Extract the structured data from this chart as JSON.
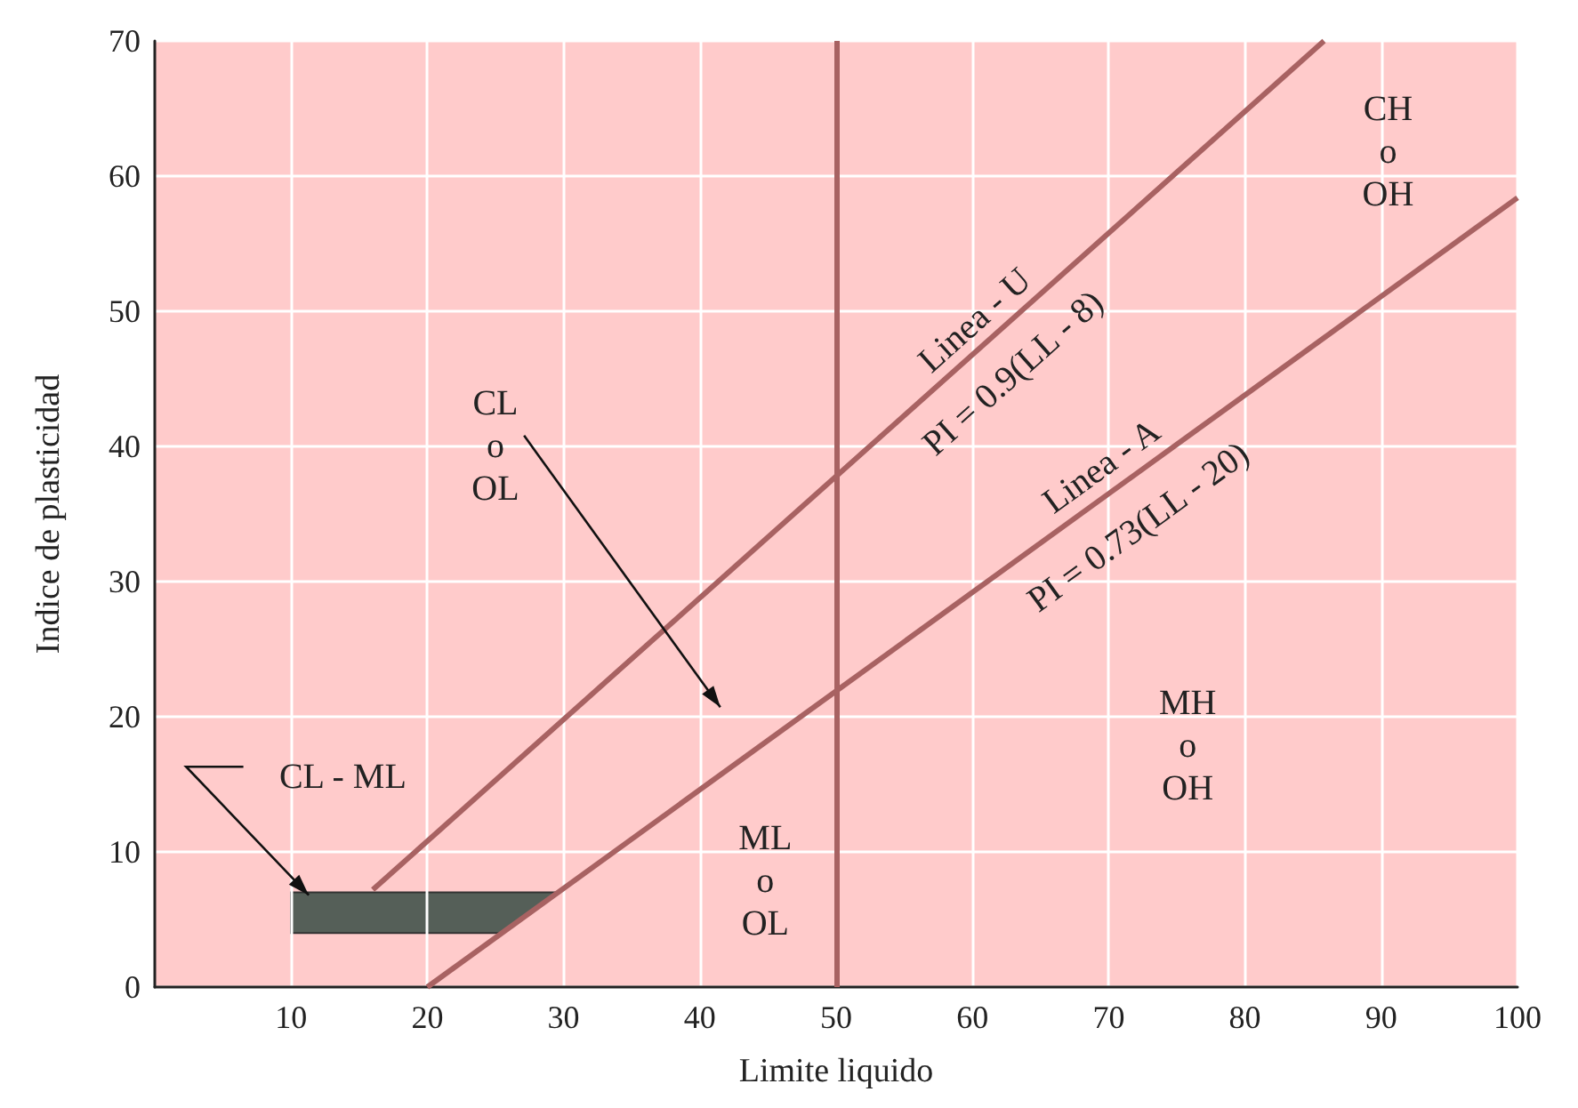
{
  "chart_data": {
    "type": "line",
    "xlabel": "Limite liquido",
    "ylabel": "Indice de plasticidad",
    "xlim": [
      0,
      100
    ],
    "xticks": [
      10,
      20,
      30,
      40,
      50,
      60,
      70,
      80,
      90,
      100
    ],
    "ylim": [
      0,
      70
    ],
    "yticks": [
      0,
      10,
      20,
      30,
      40,
      50,
      60,
      70
    ],
    "grid": true,
    "series": [
      {
        "x": [
          16,
          85.8
        ],
        "values": [
          7.2,
          70
        ],
        "color": "#a86262"
      },
      {
        "x": [
          20,
          100
        ],
        "values": [
          0,
          58.4
        ],
        "color": "#a86262"
      }
    ],
    "ref_lines": [
      {
        "axis": "x",
        "value": 50,
        "color": "#a86262"
      }
    ],
    "annotations": [
      "CL\no\nOL",
      "ML\no\nOL",
      "MH\no\nOH",
      "CH\no\nOH",
      "CL - ML",
      "Linea - U",
      "PI = 0.9(LL - 8)",
      "Linea - A",
      "PI = 0.73(LL - 20)"
    ]
  }
}
